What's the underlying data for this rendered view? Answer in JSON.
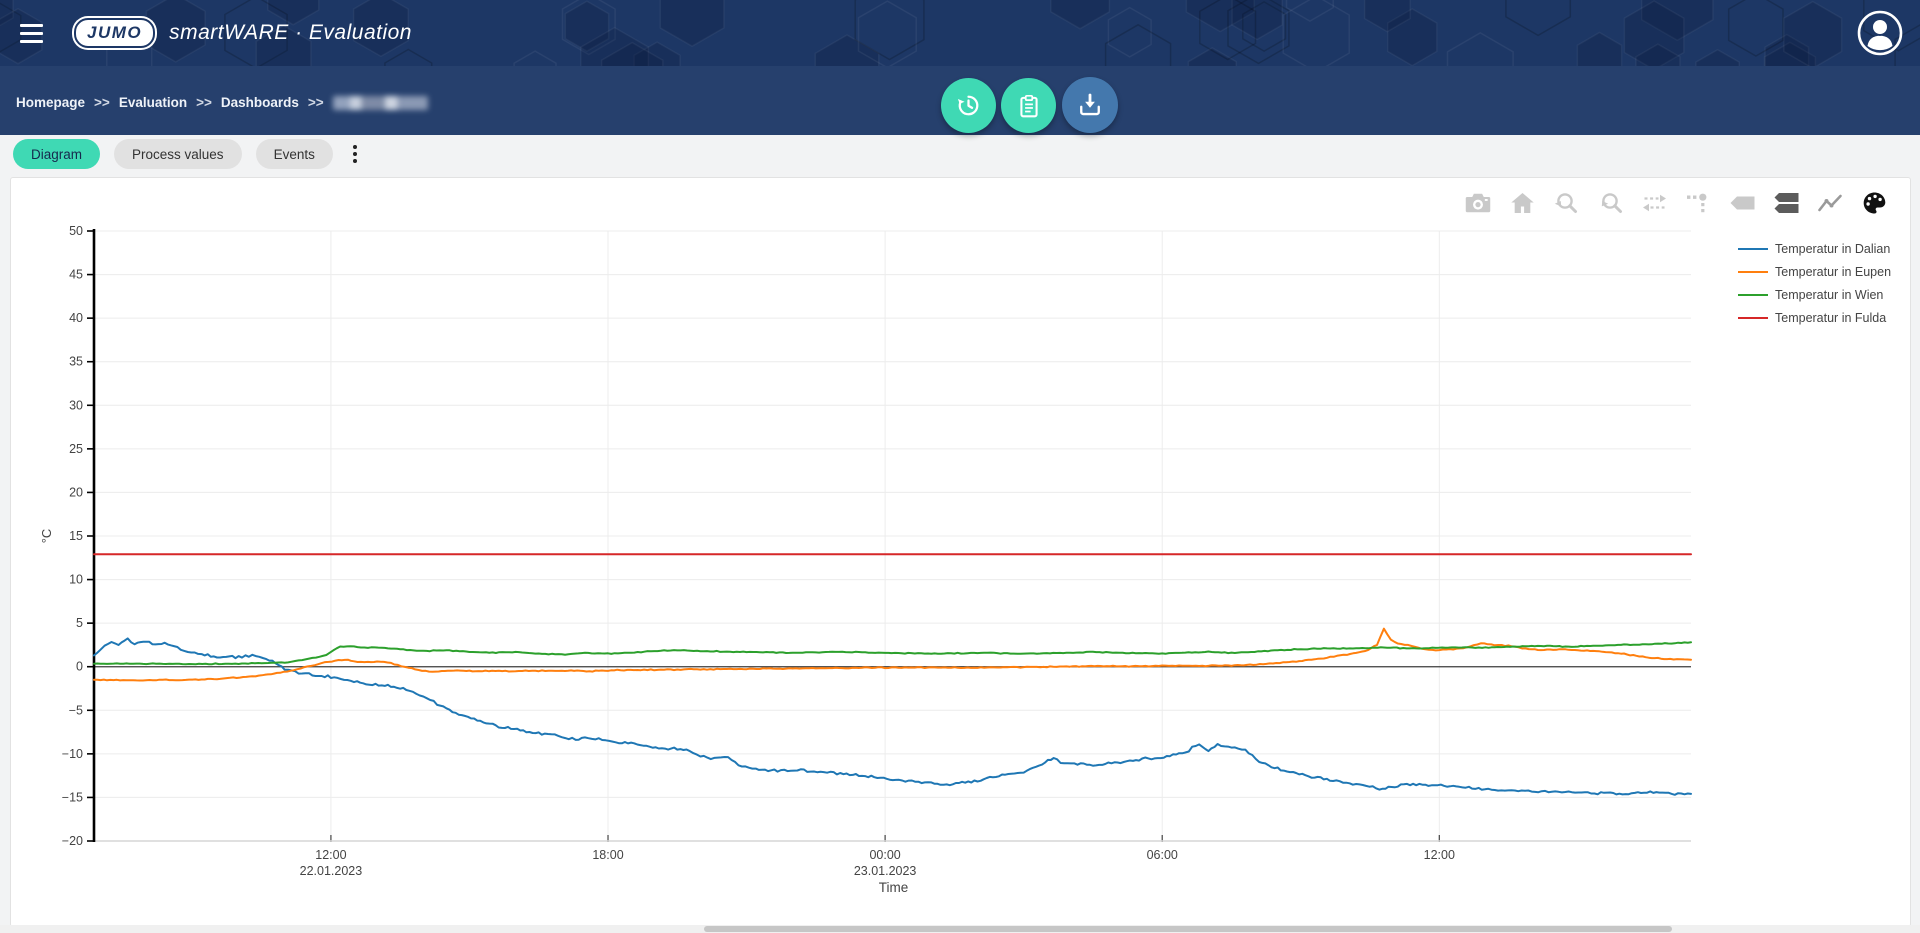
{
  "header": {
    "logo_text": "JUMO",
    "brand": "smartWARE · Evaluation"
  },
  "breadcrumb": {
    "items": [
      "Homepage",
      "Evaluation",
      "Dashboards"
    ],
    "separator": ">>",
    "current_redacted": true
  },
  "tabs": [
    {
      "label": "Diagram",
      "active": true
    },
    {
      "label": "Process values",
      "active": false
    },
    {
      "label": "Events",
      "active": false
    }
  ],
  "toolbar_icons": [
    "camera",
    "home",
    "zoom-back",
    "zoom-forward",
    "pan-compare",
    "spike-lines",
    "hover-closest",
    "hover-compare",
    "line-style",
    "palette"
  ],
  "colors": {
    "header_navy": "#1d3765",
    "breadcrumb_navy": "#26406d",
    "teal_accent": "#3fd9b4",
    "download_blue": "#4478ad",
    "series_blue": "#1f77b4",
    "series_orange": "#ff7f0e",
    "series_green": "#2ca02c",
    "series_red": "#d62728"
  },
  "chart_data": {
    "type": "line",
    "title": "",
    "xlabel": "Time",
    "ylabel": "°C",
    "ylim": [
      -20,
      50
    ],
    "ytick_step": 5,
    "grid": true,
    "legend_position": "right",
    "x_unit_hours_since": "22.01.2023 00:00",
    "x_range": [
      6.87,
      41.45
    ],
    "x_ticks": [
      {
        "t": 12,
        "time": "12:00",
        "date": "22.01.2023"
      },
      {
        "t": 18,
        "time": "18:00",
        "date": ""
      },
      {
        "t": 24,
        "time": "00:00",
        "date": "23.01.2023"
      },
      {
        "t": 30,
        "time": "06:00",
        "date": ""
      },
      {
        "t": 36,
        "time": "12:00",
        "date": ""
      }
    ],
    "series": [
      {
        "name": "Temperatur in Dalian",
        "color": "#1f77b4",
        "noise": 0.18,
        "points": [
          [
            6.87,
            1.3
          ],
          [
            7.0,
            1.8
          ],
          [
            7.1,
            2.3
          ],
          [
            7.25,
            2.9
          ],
          [
            7.4,
            2.4
          ],
          [
            7.6,
            3.2
          ],
          [
            7.75,
            2.6
          ],
          [
            8.0,
            3.0
          ],
          [
            8.2,
            2.4
          ],
          [
            8.4,
            2.8
          ],
          [
            8.6,
            2.3
          ],
          [
            8.9,
            1.7
          ],
          [
            9.2,
            1.4
          ],
          [
            9.6,
            1.1
          ],
          [
            10.0,
            1.1
          ],
          [
            10.3,
            1.3
          ],
          [
            10.6,
            1.0
          ],
          [
            10.8,
            0.4
          ],
          [
            11.0,
            -0.2
          ],
          [
            11.3,
            -0.8
          ],
          [
            11.6,
            -0.9
          ],
          [
            12.0,
            -1.2
          ],
          [
            12.5,
            -1.7
          ],
          [
            12.9,
            -2.1
          ],
          [
            13.3,
            -2.2
          ],
          [
            13.7,
            -2.7
          ],
          [
            14.0,
            -3.4
          ],
          [
            14.3,
            -4.3
          ],
          [
            14.7,
            -5.3
          ],
          [
            15.1,
            -6.0
          ],
          [
            15.5,
            -6.7
          ],
          [
            15.9,
            -7.1
          ],
          [
            16.3,
            -7.5
          ],
          [
            16.7,
            -7.8
          ],
          [
            17.0,
            -8.0
          ],
          [
            17.3,
            -8.4
          ],
          [
            17.5,
            -8.1
          ],
          [
            17.8,
            -8.3
          ],
          [
            18.1,
            -8.6
          ],
          [
            18.5,
            -8.8
          ],
          [
            18.9,
            -9.2
          ],
          [
            19.3,
            -9.4
          ],
          [
            19.7,
            -9.5
          ],
          [
            20.0,
            -10.3
          ],
          [
            20.3,
            -10.5
          ],
          [
            20.6,
            -10.4
          ],
          [
            20.9,
            -11.4
          ],
          [
            21.2,
            -11.8
          ],
          [
            21.6,
            -11.9
          ],
          [
            22.1,
            -11.9
          ],
          [
            22.6,
            -12.0
          ],
          [
            23.1,
            -12.3
          ],
          [
            23.7,
            -12.6
          ],
          [
            24.3,
            -13.0
          ],
          [
            25.0,
            -13.4
          ],
          [
            25.4,
            -13.5
          ],
          [
            25.8,
            -13.2
          ],
          [
            26.2,
            -12.9
          ],
          [
            26.6,
            -12.4
          ],
          [
            27.0,
            -12.1
          ],
          [
            27.4,
            -11.2
          ],
          [
            27.65,
            -10.4
          ],
          [
            27.8,
            -11.0
          ],
          [
            28.1,
            -11.1
          ],
          [
            28.5,
            -11.3
          ],
          [
            28.9,
            -11.1
          ],
          [
            29.3,
            -10.8
          ],
          [
            29.7,
            -10.5
          ],
          [
            30.1,
            -10.3
          ],
          [
            30.5,
            -9.8
          ],
          [
            30.8,
            -8.9
          ],
          [
            31.0,
            -9.6
          ],
          [
            31.2,
            -9.0
          ],
          [
            31.5,
            -9.2
          ],
          [
            31.8,
            -9.6
          ],
          [
            32.1,
            -10.9
          ],
          [
            32.5,
            -11.7
          ],
          [
            32.9,
            -12.2
          ],
          [
            33.3,
            -12.7
          ],
          [
            33.7,
            -13.1
          ],
          [
            34.2,
            -13.5
          ],
          [
            34.7,
            -14.0
          ],
          [
            35.3,
            -13.5
          ],
          [
            35.9,
            -13.6
          ],
          [
            36.5,
            -13.8
          ],
          [
            37.2,
            -14.1
          ],
          [
            38.0,
            -14.3
          ],
          [
            38.8,
            -14.4
          ],
          [
            39.5,
            -14.5
          ],
          [
            40.1,
            -14.6
          ],
          [
            40.7,
            -14.4
          ],
          [
            41.1,
            -14.6
          ],
          [
            41.45,
            -14.6
          ]
        ]
      },
      {
        "name": "Temperatur in Eupen",
        "color": "#ff7f0e",
        "noise": 0.07,
        "points": [
          [
            6.87,
            -1.5
          ],
          [
            8.0,
            -1.55
          ],
          [
            9.0,
            -1.5
          ],
          [
            9.6,
            -1.4
          ],
          [
            10.1,
            -1.2
          ],
          [
            10.5,
            -1.0
          ],
          [
            10.9,
            -0.7
          ],
          [
            11.2,
            -0.4
          ],
          [
            11.5,
            0.0
          ],
          [
            11.8,
            0.4
          ],
          [
            12.1,
            0.7
          ],
          [
            12.3,
            0.8
          ],
          [
            12.5,
            0.6
          ],
          [
            12.8,
            0.5
          ],
          [
            13.0,
            0.6
          ],
          [
            13.3,
            0.4
          ],
          [
            13.6,
            0.0
          ],
          [
            13.9,
            -0.4
          ],
          [
            14.2,
            -0.55
          ],
          [
            14.6,
            -0.45
          ],
          [
            15.2,
            -0.5
          ],
          [
            16.0,
            -0.5
          ],
          [
            17.0,
            -0.45
          ],
          [
            17.6,
            -0.5
          ],
          [
            18.2,
            -0.4
          ],
          [
            19.0,
            -0.35
          ],
          [
            20.0,
            -0.3
          ],
          [
            21.0,
            -0.25
          ],
          [
            22.0,
            -0.2
          ],
          [
            23.0,
            -0.15
          ],
          [
            24.0,
            -0.1
          ],
          [
            25.0,
            -0.1
          ],
          [
            26.0,
            -0.1
          ],
          [
            27.0,
            -0.05
          ],
          [
            28.0,
            0.0
          ],
          [
            28.6,
            0.1
          ],
          [
            29.2,
            0.05
          ],
          [
            30.0,
            0.1
          ],
          [
            30.8,
            0.1
          ],
          [
            31.5,
            0.15
          ],
          [
            31.9,
            0.2
          ],
          [
            32.4,
            0.4
          ],
          [
            32.9,
            0.6
          ],
          [
            33.5,
            1.0
          ],
          [
            34.0,
            1.4
          ],
          [
            34.4,
            1.8
          ],
          [
            34.65,
            2.5
          ],
          [
            34.8,
            4.4
          ],
          [
            34.95,
            3.1
          ],
          [
            35.1,
            2.7
          ],
          [
            35.4,
            2.4
          ],
          [
            35.7,
            2.0
          ],
          [
            36.0,
            1.9
          ],
          [
            36.3,
            2.0
          ],
          [
            36.6,
            2.2
          ],
          [
            36.9,
            2.7
          ],
          [
            37.2,
            2.5
          ],
          [
            37.5,
            2.4
          ],
          [
            37.8,
            2.1
          ],
          [
            38.2,
            1.9
          ],
          [
            38.6,
            2.0
          ],
          [
            39.0,
            1.9
          ],
          [
            39.4,
            1.8
          ],
          [
            39.8,
            1.6
          ],
          [
            40.2,
            1.3
          ],
          [
            40.6,
            1.0
          ],
          [
            41.0,
            0.85
          ],
          [
            41.45,
            0.8
          ]
        ]
      },
      {
        "name": "Temperatur in Wien",
        "color": "#2ca02c",
        "noise": 0.06,
        "points": [
          [
            6.87,
            0.35
          ],
          [
            8.0,
            0.35
          ],
          [
            9.0,
            0.3
          ],
          [
            10.0,
            0.35
          ],
          [
            10.5,
            0.4
          ],
          [
            11.0,
            0.5
          ],
          [
            11.3,
            0.7
          ],
          [
            11.6,
            1.0
          ],
          [
            11.9,
            1.3
          ],
          [
            12.05,
            1.9
          ],
          [
            12.2,
            2.3
          ],
          [
            12.5,
            2.3
          ],
          [
            12.8,
            2.2
          ],
          [
            13.1,
            2.2
          ],
          [
            13.5,
            2.0
          ],
          [
            14.0,
            1.8
          ],
          [
            14.5,
            1.9
          ],
          [
            15.0,
            1.7
          ],
          [
            15.5,
            1.6
          ],
          [
            16.0,
            1.7
          ],
          [
            16.5,
            1.5
          ],
          [
            17.0,
            1.4
          ],
          [
            17.5,
            1.6
          ],
          [
            18.0,
            1.5
          ],
          [
            18.5,
            1.6
          ],
          [
            19.0,
            1.8
          ],
          [
            19.5,
            1.9
          ],
          [
            20.0,
            1.8
          ],
          [
            21.0,
            1.7
          ],
          [
            22.0,
            1.6
          ],
          [
            23.0,
            1.7
          ],
          [
            24.0,
            1.6
          ],
          [
            25.0,
            1.5
          ],
          [
            26.0,
            1.6
          ],
          [
            27.0,
            1.5
          ],
          [
            28.0,
            1.6
          ],
          [
            28.5,
            1.7
          ],
          [
            29.0,
            1.6
          ],
          [
            30.0,
            1.5
          ],
          [
            30.5,
            1.6
          ],
          [
            31.0,
            1.7
          ],
          [
            31.5,
            1.6
          ],
          [
            32.0,
            1.7
          ],
          [
            32.5,
            1.9
          ],
          [
            33.0,
            2.0
          ],
          [
            33.5,
            2.1
          ],
          [
            34.2,
            2.1
          ],
          [
            34.8,
            2.2
          ],
          [
            35.5,
            2.1
          ],
          [
            36.2,
            2.2
          ],
          [
            37.0,
            2.2
          ],
          [
            37.6,
            2.3
          ],
          [
            38.2,
            2.4
          ],
          [
            38.8,
            2.3
          ],
          [
            39.4,
            2.4
          ],
          [
            40.0,
            2.5
          ],
          [
            40.6,
            2.6
          ],
          [
            41.1,
            2.7
          ],
          [
            41.45,
            2.8
          ]
        ]
      },
      {
        "name": "Temperatur in Fulda",
        "color": "#d62728",
        "noise": 0,
        "points": [
          [
            6.87,
            12.9
          ],
          [
            41.45,
            12.9
          ]
        ]
      }
    ]
  }
}
